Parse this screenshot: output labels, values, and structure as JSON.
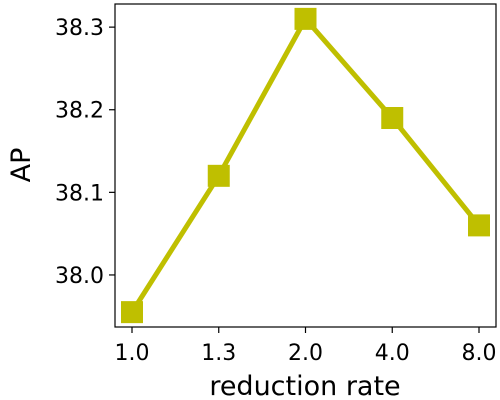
{
  "chart_data": {
    "type": "line",
    "categories": [
      "1.0",
      "1.3",
      "2.0",
      "4.0",
      "8.0"
    ],
    "series": [
      {
        "values": [
          37.955,
          38.12,
          38.31,
          38.19,
          38.06
        ],
        "color": "#bfbf00",
        "marker": "square"
      }
    ],
    "xlabel": "reduction rate",
    "ylabel": "AP",
    "y_ticks": [
      "38.0",
      "38.1",
      "38.2",
      "38.3"
    ],
    "ylim": [
      37.937,
      38.328
    ],
    "grid": false
  }
}
